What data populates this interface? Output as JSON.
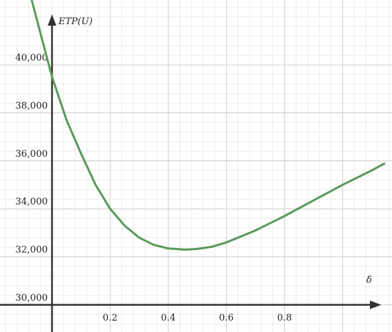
{
  "chart_data": {
    "type": "line",
    "x_label": "δ",
    "y_label": "ETP(U)",
    "x": [
      -0.07,
      0,
      0.05,
      0.1,
      0.15,
      0.2,
      0.25,
      0.3,
      0.35,
      0.4,
      0.46,
      0.5,
      0.55,
      0.6,
      0.7,
      0.8,
      0.9,
      1.0,
      1.1,
      1.146
    ],
    "series": [
      {
        "color": "#5a9a5a",
        "values": [
          42700,
          39500,
          37700,
          36300,
          35000,
          34000,
          33300,
          32800,
          32500,
          32350,
          32300,
          32330,
          32420,
          32600,
          33100,
          33700,
          34350,
          35000,
          35600,
          35900
        ]
      }
    ],
    "xlim": [
      -0.179,
      1.17
    ],
    "ylim": [
      28870,
      42700
    ],
    "xticks": [
      0.2,
      0.4,
      0.6,
      0.8,
      {
        "value": 1,
        "label": null
      }
    ],
    "yticks": [
      {
        "value": 30000,
        "label": "30,000"
      },
      {
        "value": 32000,
        "label": "32,000"
      },
      {
        "value": 34000,
        "label": "34,000"
      },
      {
        "value": 36000,
        "label": "36,000"
      },
      {
        "value": 38000,
        "label": "38,000"
      },
      {
        "value": 40000,
        "label": "40,000"
      }
    ],
    "grid": true,
    "minor_grid_divisions": 5
  }
}
